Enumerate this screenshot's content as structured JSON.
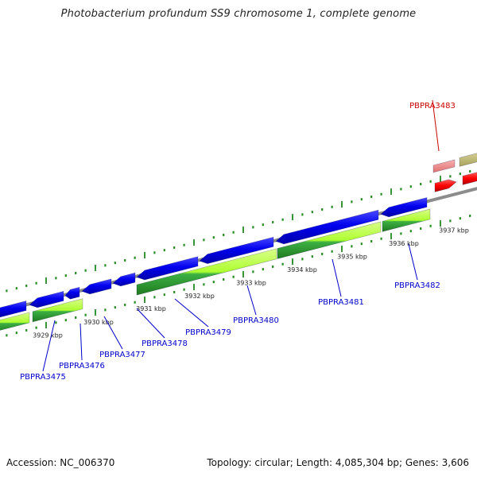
{
  "title": "Photobacterium profundum SS9 chromosome 1, complete genome",
  "accession": "Accession: NC_006370",
  "topology": "Topology: circular; Length: 4,085,304 bp; Genes: 3,606",
  "colors": {
    "backbone": "#8c8c8c",
    "cds_blue": "#0000ee",
    "gene_green_light": "#adff2f",
    "gene_green_dark": "#2e8b2e",
    "highlight_red": "#ff0000",
    "highlight_pink": "#f08080",
    "olive": "#bdb76b",
    "tick_green": "#228b22",
    "label_blue": "#0000cc",
    "label_red": "#cc0000"
  },
  "scale_labels": [
    "3929 kbp",
    "3930 kbp",
    "3931 kbp",
    "3932 kbp",
    "3933 kbp",
    "3934 kbp",
    "3935 kbp",
    "3936 kbp",
    "3937 kbp"
  ],
  "gene_labels": [
    {
      "name": "PBPRA3475",
      "highlight": false
    },
    {
      "name": "PBPRA3476",
      "highlight": false
    },
    {
      "name": "PBPRA3477",
      "highlight": false
    },
    {
      "name": "PBPRA3478",
      "highlight": false
    },
    {
      "name": "PBPRA3479",
      "highlight": false
    },
    {
      "name": "PBPRA3480",
      "highlight": false
    },
    {
      "name": "PBPRA3481",
      "highlight": false
    },
    {
      "name": "PBPRA3482",
      "highlight": false
    },
    {
      "name": "PBPRA3483",
      "highlight": true
    }
  ]
}
